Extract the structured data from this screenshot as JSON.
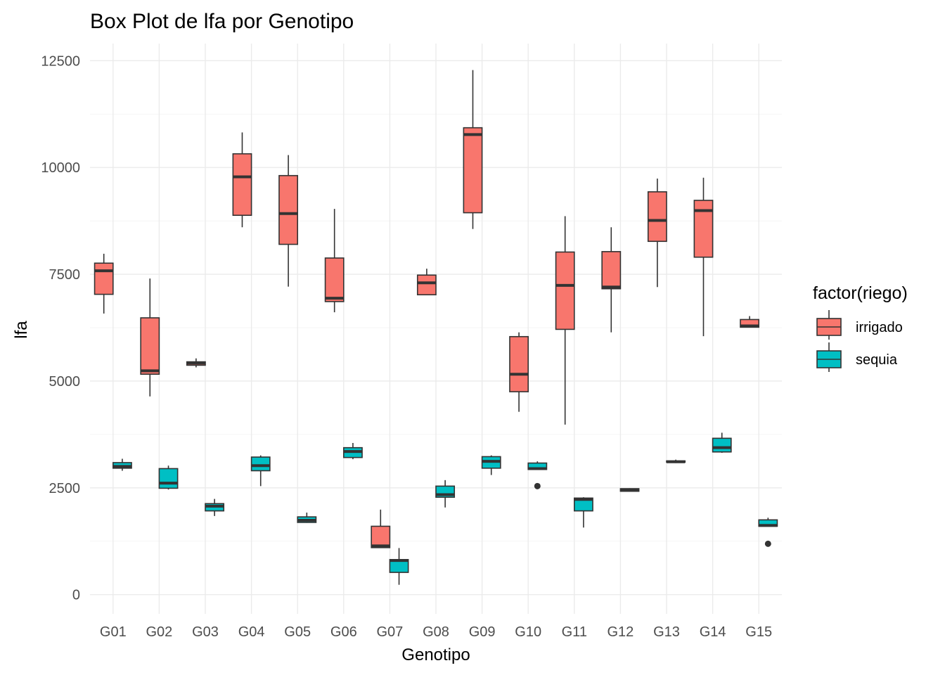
{
  "chart_data": {
    "type": "box",
    "title": "Box Plot de lfa por Genotipo",
    "xlabel": "Genotipo",
    "ylabel": "lfa",
    "ylim": [
      -450,
      12900
    ],
    "yticks": [
      0,
      2500,
      5000,
      7500,
      10000,
      12500
    ],
    "ytick_labels": [
      "0",
      "2500",
      "5000",
      "7500",
      "10000",
      "12500"
    ],
    "grid": true,
    "legend_position": "right",
    "categories": [
      "G01",
      "G02",
      "G03",
      "G04",
      "G05",
      "G06",
      "G07",
      "G08",
      "G09",
      "G10",
      "G11",
      "G12",
      "G13",
      "G14",
      "G15"
    ],
    "legend": {
      "title": "factor(riego)",
      "items": [
        {
          "label": "irrigado",
          "color": "#F8766D"
        },
        {
          "label": "sequia",
          "color": "#00BFC4"
        }
      ]
    },
    "series": [
      {
        "name": "irrigado",
        "color": "#F8766D",
        "boxes": [
          {
            "min": 6580,
            "q1": 7030,
            "median": 7580,
            "q3": 7760,
            "max": 7980,
            "outliers": []
          },
          {
            "min": 4640,
            "q1": 5160,
            "median": 5240,
            "q3": 6480,
            "max": 7400,
            "outliers": []
          },
          {
            "min": 5320,
            "q1": 5370,
            "median": 5420,
            "q3": 5450,
            "max": 5530,
            "outliers": []
          },
          {
            "min": 8600,
            "q1": 8880,
            "median": 9780,
            "q3": 10320,
            "max": 10820,
            "outliers": []
          },
          {
            "min": 7210,
            "q1": 8200,
            "median": 8920,
            "q3": 9810,
            "max": 10290,
            "outliers": []
          },
          {
            "min": 6610,
            "q1": 6860,
            "median": 6940,
            "q3": 7880,
            "max": 9030,
            "outliers": []
          },
          {
            "min": 1090,
            "q1": 1100,
            "median": 1140,
            "q3": 1600,
            "max": 1990,
            "outliers": []
          },
          {
            "min": 7010,
            "q1": 7020,
            "median": 7300,
            "q3": 7480,
            "max": 7630,
            "outliers": []
          },
          {
            "min": 8560,
            "q1": 8940,
            "median": 10770,
            "q3": 10930,
            "max": 12280,
            "outliers": []
          },
          {
            "min": 4280,
            "q1": 4750,
            "median": 5160,
            "q3": 6040,
            "max": 6140,
            "outliers": []
          },
          {
            "min": 3980,
            "q1": 6210,
            "median": 7240,
            "q3": 8020,
            "max": 8860,
            "outliers": []
          },
          {
            "min": 6140,
            "q1": 7160,
            "median": 7200,
            "q3": 8030,
            "max": 8600,
            "outliers": []
          },
          {
            "min": 7200,
            "q1": 8270,
            "median": 8760,
            "q3": 9430,
            "max": 9740,
            "outliers": []
          },
          {
            "min": 6050,
            "q1": 7900,
            "median": 8990,
            "q3": 9230,
            "max": 9760,
            "outliers": []
          },
          {
            "min": 6250,
            "q1": 6260,
            "median": 6290,
            "q3": 6440,
            "max": 6520,
            "outliers": []
          }
        ]
      },
      {
        "name": "sequia",
        "color": "#00BFC4",
        "boxes": [
          {
            "min": 2900,
            "q1": 2960,
            "median": 3000,
            "q3": 3090,
            "max": 3180,
            "outliers": []
          },
          {
            "min": 2460,
            "q1": 2490,
            "median": 2610,
            "q3": 2950,
            "max": 3020,
            "outliers": []
          },
          {
            "min": 1840,
            "q1": 1960,
            "median": 2070,
            "q3": 2130,
            "max": 2240,
            "outliers": []
          },
          {
            "min": 2540,
            "q1": 2900,
            "median": 3020,
            "q3": 3220,
            "max": 3260,
            "outliers": []
          },
          {
            "min": 1680,
            "q1": 1690,
            "median": 1740,
            "q3": 1820,
            "max": 1920,
            "outliers": []
          },
          {
            "min": 3170,
            "q1": 3210,
            "median": 3350,
            "q3": 3440,
            "max": 3550,
            "outliers": []
          },
          {
            "min": 230,
            "q1": 520,
            "median": 800,
            "q3": 820,
            "max": 1090,
            "outliers": []
          },
          {
            "min": 2040,
            "q1": 2280,
            "median": 2340,
            "q3": 2540,
            "max": 2680,
            "outliers": []
          },
          {
            "min": 2800,
            "q1": 2960,
            "median": 3120,
            "q3": 3230,
            "max": 3260,
            "outliers": []
          },
          {
            "min": 2920,
            "q1": 2930,
            "median": 2950,
            "q3": 3080,
            "max": 3120,
            "outliers": [
              2540
            ]
          },
          {
            "min": 1570,
            "q1": 1960,
            "median": 2230,
            "q3": 2260,
            "max": 2280,
            "outliers": []
          },
          {
            "min": 2410,
            "q1": 2420,
            "median": 2440,
            "q3": 2480,
            "max": 2490,
            "outliers": []
          },
          {
            "min": 3080,
            "q1": 3100,
            "median": 3110,
            "q3": 3130,
            "max": 3160,
            "outliers": []
          },
          {
            "min": 3320,
            "q1": 3340,
            "median": 3440,
            "q3": 3660,
            "max": 3790,
            "outliers": []
          },
          {
            "min": 1600,
            "q1": 1600,
            "median": 1620,
            "q3": 1750,
            "max": 1800,
            "outliers": [
              1190
            ]
          }
        ]
      }
    ]
  }
}
